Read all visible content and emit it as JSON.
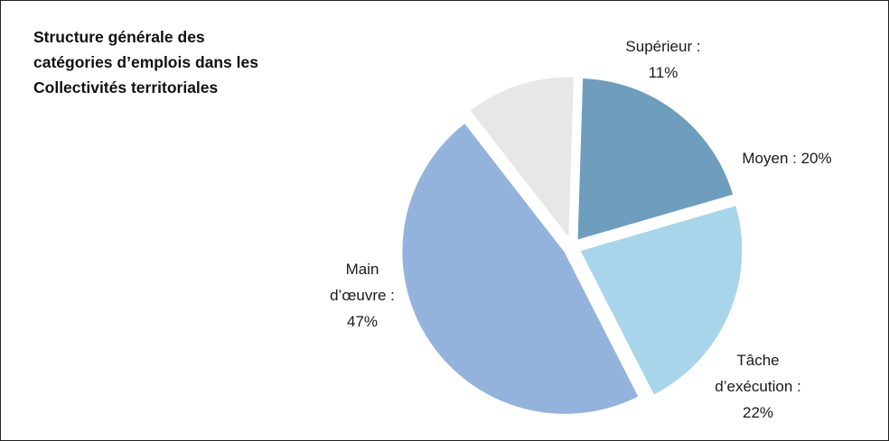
{
  "chart_data": {
    "type": "pie",
    "title_lines": [
      "Structure générale des",
      "catégories d’emplois dans les",
      "Collectivités territoriales"
    ],
    "slices": [
      {
        "name": "Supérieur",
        "value": 11,
        "color": "#e7e7e7",
        "label_lines": [
          "Supérieur :",
          "11%"
        ]
      },
      {
        "name": "Moyen",
        "value": 20,
        "color": "#6e9dbe",
        "label_lines": [
          "Moyen : 20%"
        ]
      },
      {
        "name": "Tâche d’exécution",
        "value": 22,
        "color": "#a9d5ea",
        "label_lines": [
          "Tâche",
          "d’exécution :",
          "22%"
        ]
      },
      {
        "name": "Main d’œuvre",
        "value": 47,
        "color": "#94b3dc",
        "label_lines": [
          "Main",
          "d’œuvre :",
          "47%"
        ]
      }
    ]
  }
}
